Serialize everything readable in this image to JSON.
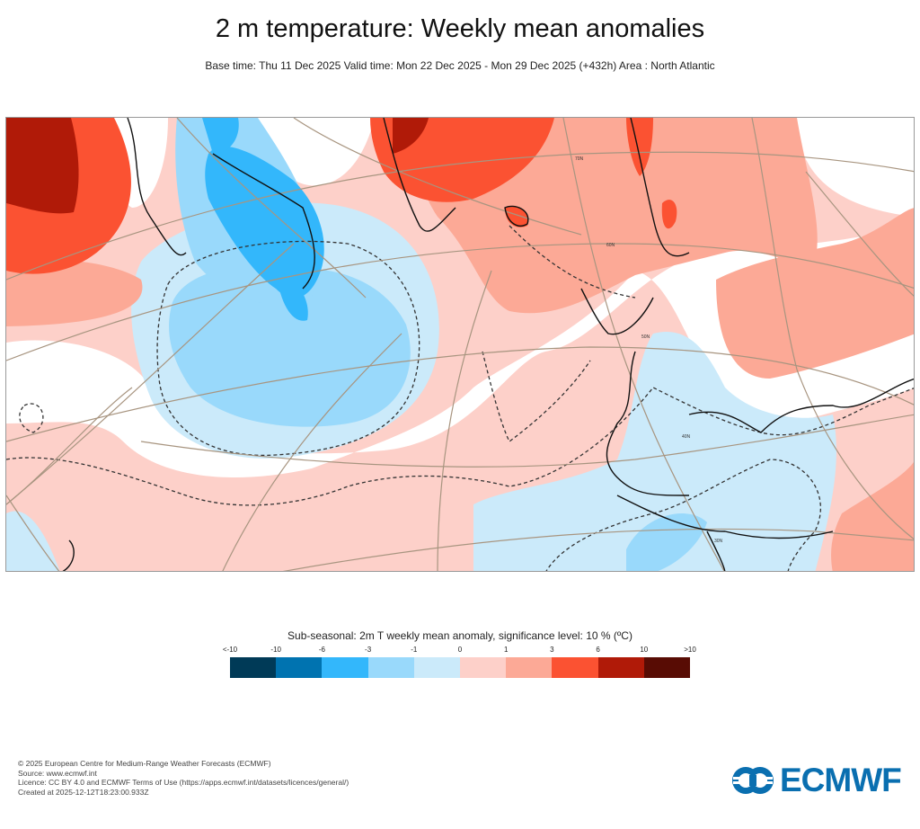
{
  "header": {
    "title": "2 m temperature: Weekly mean anomalies",
    "subtitle": "Base time: Thu 11 Dec 2025 Valid time: Mon 22 Dec 2025 - Mon 29 Dec 2025 (+432h) Area : North Atlantic"
  },
  "map": {
    "latitude_labels": [
      "70N",
      "60N",
      "50N",
      "40N",
      "30N"
    ]
  },
  "legend": {
    "title": "Sub-seasonal: 2m T weekly mean anomaly, significance level: 10 % (ºC)",
    "ticks": [
      "<-10",
      "-10",
      "-6",
      "-3",
      "-1",
      "0",
      "1",
      "3",
      "6",
      "10",
      ">10"
    ],
    "colors": [
      "#003a57",
      "#0073b0",
      "#33b7fb",
      "#99d9fb",
      "#cbeafa",
      "#fdd0c9",
      "#fca996",
      "#fb5232",
      "#b01a08",
      "#580c04"
    ]
  },
  "footer": {
    "lines": [
      "© 2025 European Centre for Medium-Range Weather Forecasts (ECMWF)",
      "Source: www.ecmwf.int",
      "Licence: CC BY 4.0 and ECMWF Terms of Use (https://apps.ecmwf.int/datasets/licences/general/)",
      "Created at 2025-12-12T18:23:00.933Z"
    ]
  },
  "logo": {
    "text": "ECMWF",
    "color": "#0a6fb0"
  }
}
